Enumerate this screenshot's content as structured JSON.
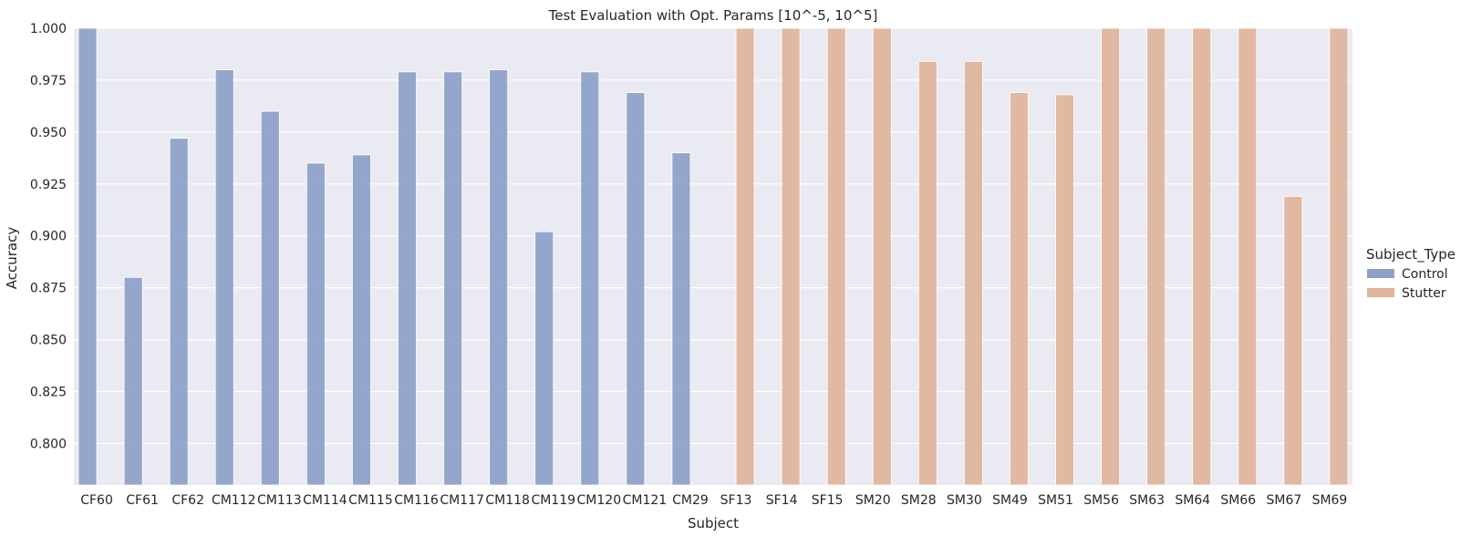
{
  "chart_data": {
    "type": "bar",
    "title": "Test Evaluation with Opt. Params [10^-5, 10^5]",
    "xlabel": "Subject",
    "ylabel": "Accuracy",
    "ylim": [
      0.78,
      1.0
    ],
    "yticks": [
      "0.800",
      "0.825",
      "0.850",
      "0.875",
      "0.900",
      "0.925",
      "0.950",
      "0.975",
      "1.000"
    ],
    "grid": true,
    "legend_position": "right",
    "legend_title": "Subject_Type",
    "categories": [
      "CF60",
      "CF61",
      "CF62",
      "CM112",
      "CM113",
      "CM114",
      "CM115",
      "CM116",
      "CM117",
      "CM118",
      "CM119",
      "CM120",
      "CM121",
      "CM29",
      "SF13",
      "SF14",
      "SF15",
      "SM20",
      "SM28",
      "SM30",
      "SM49",
      "SM51",
      "SM56",
      "SM63",
      "SM64",
      "SM66",
      "SM67",
      "SM69"
    ],
    "series": [
      {
        "name": "Control",
        "color": "#8c9fc8",
        "values": [
          1.0,
          0.88,
          0.947,
          0.98,
          0.96,
          0.935,
          0.939,
          0.979,
          0.979,
          0.98,
          0.902,
          0.979,
          0.969,
          0.94,
          null,
          null,
          null,
          null,
          null,
          null,
          null,
          null,
          null,
          null,
          null,
          null,
          null,
          null
        ]
      },
      {
        "name": "Stutter",
        "color": "#e0b39b",
        "values": [
          null,
          null,
          null,
          null,
          null,
          null,
          null,
          null,
          null,
          null,
          null,
          null,
          null,
          null,
          1.0,
          1.0,
          1.0,
          1.0,
          0.984,
          0.984,
          0.969,
          0.968,
          1.0,
          1.0,
          1.0,
          1.0,
          0.919,
          1.0
        ]
      }
    ]
  }
}
